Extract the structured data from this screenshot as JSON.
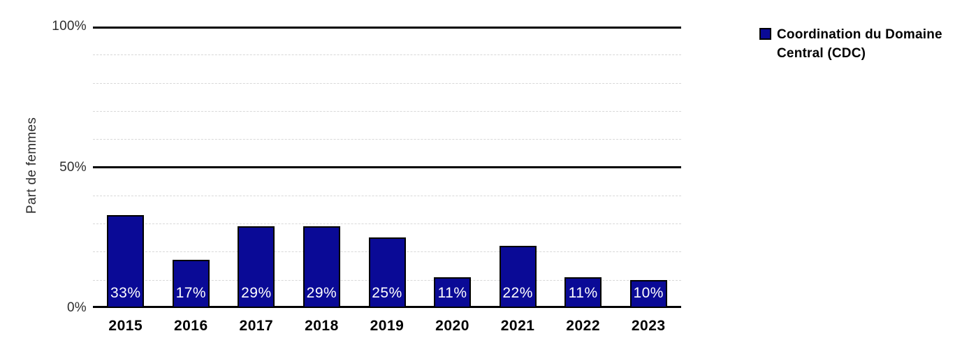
{
  "chart_data": {
    "type": "bar",
    "categories": [
      "2015",
      "2016",
      "2017",
      "2018",
      "2019",
      "2020",
      "2021",
      "2022",
      "2023"
    ],
    "values": [
      33,
      17,
      29,
      29,
      25,
      11,
      22,
      11,
      10
    ],
    "bar_labels": [
      "33%",
      "17%",
      "29%",
      "29%",
      "25%",
      "11%",
      "22%",
      "11%",
      "10%"
    ],
    "title": "",
    "xlabel": "",
    "ylabel": "Part de femmes",
    "ylim": [
      0,
      100
    ],
    "y_ticks": [
      {
        "value": 0,
        "label": "0%"
      },
      {
        "value": 50,
        "label": "50%"
      },
      {
        "value": 100,
        "label": "100%"
      }
    ],
    "minor_grid_step": 10,
    "grid": true,
    "legend_position": "right",
    "series": [
      {
        "name": "Coordination du Domaine Central (CDC)",
        "values": [
          33,
          17,
          29,
          29,
          25,
          11,
          22,
          11,
          10
        ]
      }
    ],
    "colors": {
      "bar_fill": "#0a0a96",
      "bar_border": "#000000",
      "major_line": "#000000",
      "minor_grid": "#d8d8d8",
      "bar_label_text": "#ffffff",
      "tick_text": "#2e2e2e"
    }
  },
  "legend": {
    "lines": [
      "Coordination du Domaine",
      "Central (CDC)"
    ]
  }
}
